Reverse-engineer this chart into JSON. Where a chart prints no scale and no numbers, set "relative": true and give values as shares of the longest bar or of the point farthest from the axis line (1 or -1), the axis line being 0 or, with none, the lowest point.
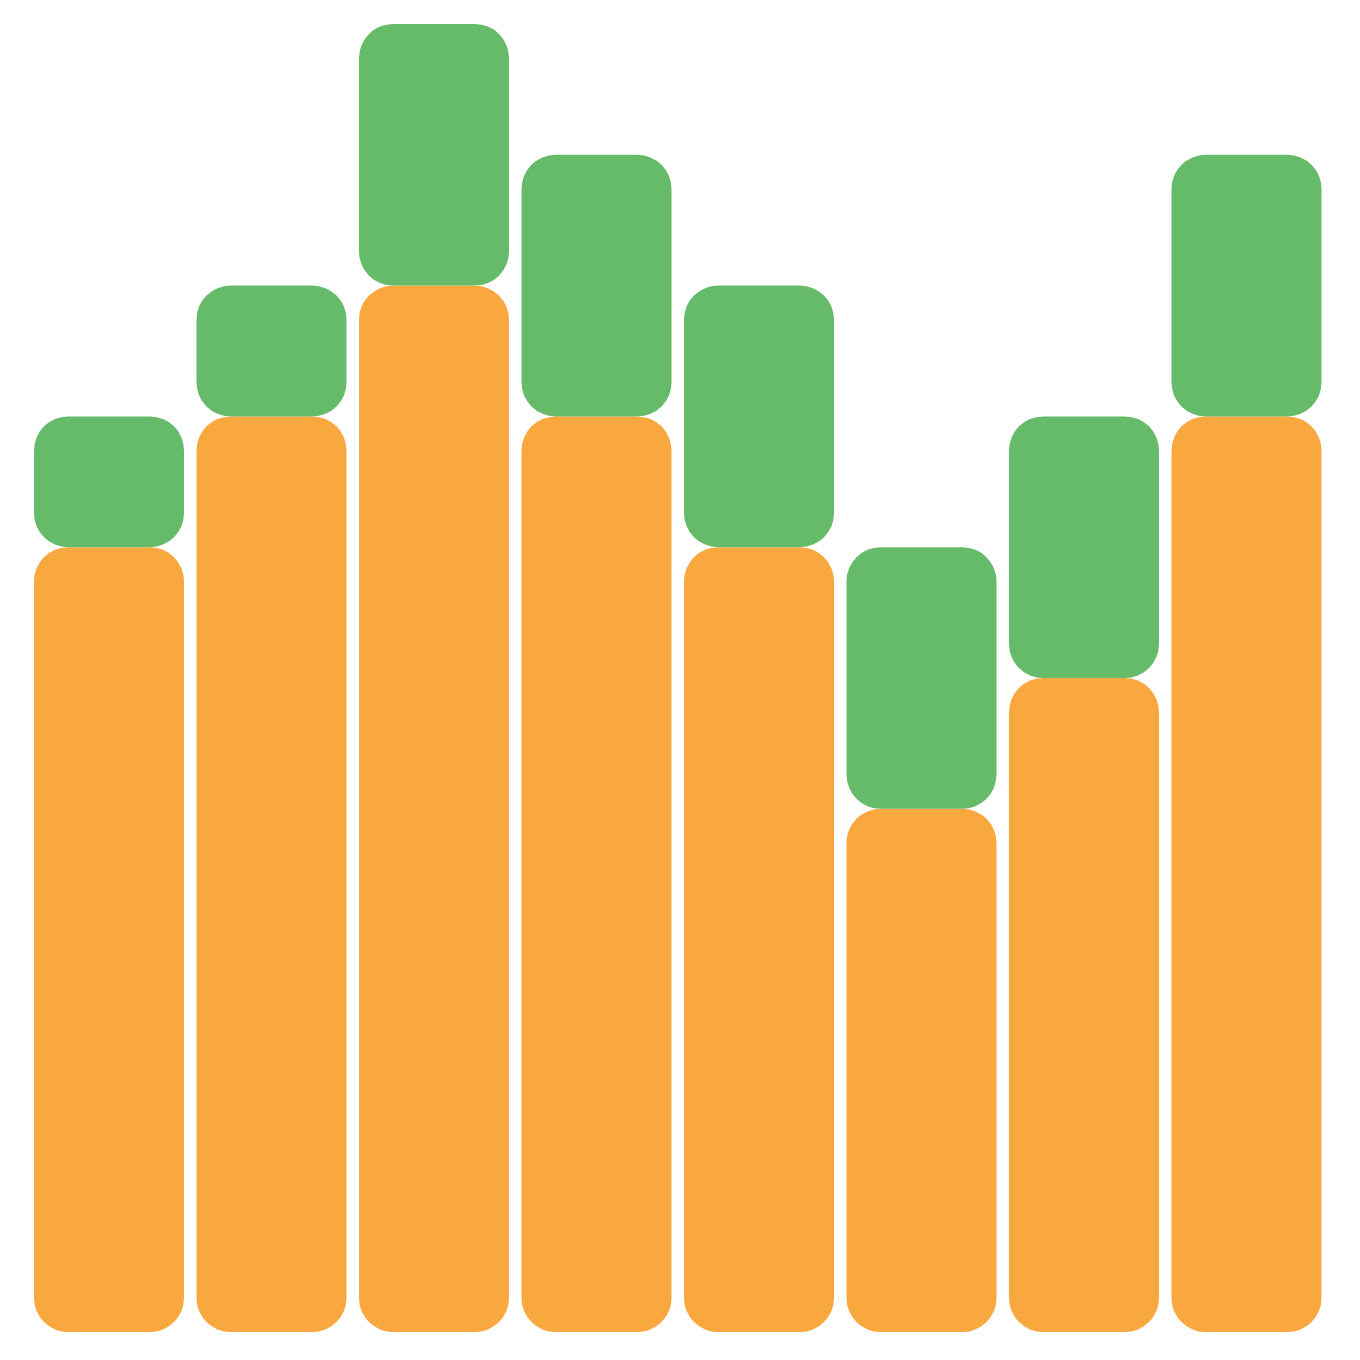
{
  "chart_data": {
    "type": "bar",
    "stacked": true,
    "relative": true,
    "categories": [
      null,
      null,
      null,
      null,
      null,
      null,
      null,
      null
    ],
    "series": [
      {
        "color": "#f9a83f",
        "values": [
          0.6,
          0.7,
          0.8,
          0.7,
          0.6,
          0.4,
          0.5,
          0.7
        ]
      },
      {
        "color": "#66bb6a",
        "values": [
          0.1,
          0.1,
          0.2,
          0.2,
          0.2,
          0.2,
          0.2,
          0.2
        ]
      }
    ]
  }
}
